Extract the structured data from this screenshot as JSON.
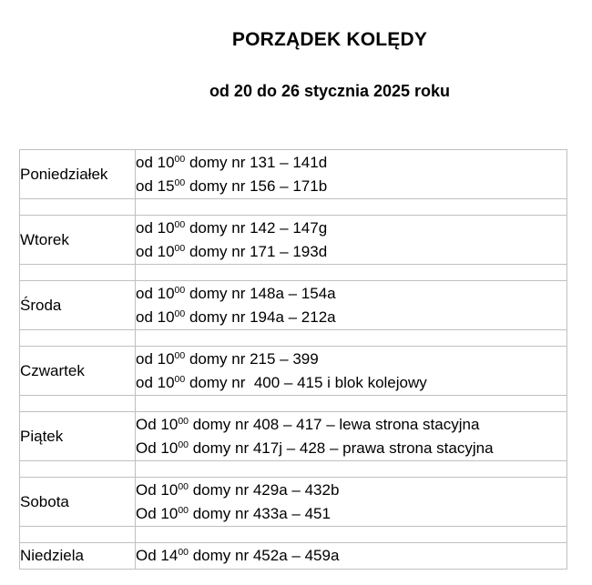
{
  "document": {
    "title": "PORZĄDEK KOLĘDY",
    "subtitle": "od 20 do 26 stycznia 2025 roku"
  },
  "colors": {
    "text": "#000000",
    "background": "#ffffff",
    "table_border": "#c0c0c0"
  },
  "schedule": {
    "rows": [
      {
        "day": "Poniedziałek",
        "lines": [
          {
            "pre": "od 10",
            "sup": "00",
            "rest": " domy nr 131 – 141d"
          },
          {
            "pre": "od 15",
            "sup": "00",
            "rest": " domy nr 156 – 171b"
          }
        ]
      },
      {
        "day": "Wtorek",
        "lines": [
          {
            "pre": "od 10",
            "sup": "00",
            "rest": " domy nr 142 – 147g"
          },
          {
            "pre": "od 10",
            "sup": "00",
            "rest": " domy nr 171 – 193d"
          }
        ]
      },
      {
        "day": "Środa",
        "lines": [
          {
            "pre": "od 10",
            "sup": "00",
            "rest": " domy nr 148a – 154a"
          },
          {
            "pre": "od 10",
            "sup": "00",
            "rest": " domy nr 194a – 212a"
          }
        ]
      },
      {
        "day": "Czwartek",
        "lines": [
          {
            "pre": "od 10",
            "sup": "00",
            "rest": " domy nr 215 – 399"
          },
          {
            "pre": "od 10",
            "sup": "00",
            "rest": " domy nr  400 – 415 i blok kolejowy"
          }
        ]
      },
      {
        "day": "Piątek",
        "lines": [
          {
            "pre": "Od 10",
            "sup": "00",
            "rest": " domy nr 408 – 417 – lewa strona stacyjna"
          },
          {
            "pre": "Od 10",
            "sup": "00",
            "rest": " domy nr 417j – 428 – prawa strona stacyjna"
          }
        ]
      },
      {
        "day": "Sobota",
        "lines": [
          {
            "pre": "Od 10",
            "sup": "00",
            "rest": " domy nr 429a – 432b"
          },
          {
            "pre": "Od 10",
            "sup": "00",
            "rest": " domy nr 433a – 451"
          }
        ]
      },
      {
        "day": "Niedziela",
        "lines": [
          {
            "pre": "Od 14",
            "sup": "00",
            "rest": " domy nr 452a – 459a"
          }
        ]
      }
    ]
  }
}
